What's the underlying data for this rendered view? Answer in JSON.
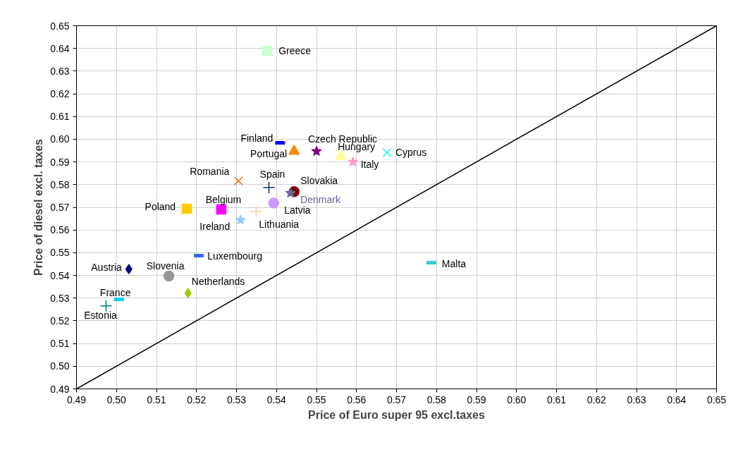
{
  "chart_data": {
    "type": "scatter",
    "xlabel": "Price of Euro super 95 excl.taxes",
    "ylabel": "Price of diesel excl. taxes",
    "xlim": [
      0.49,
      0.65
    ],
    "ylim": [
      0.49,
      0.65
    ],
    "xticks": [
      0.49,
      {
        "value": 0.5,
        "label": "0.50"
      },
      0.51,
      0.52,
      0.53,
      0.54,
      0.55,
      0.56,
      0.57,
      0.58,
      0.59,
      {
        "value": 0.6,
        "label": "0.60"
      },
      0.61,
      0.62,
      0.63,
      0.64,
      0.65
    ],
    "yticks": [
      0.49,
      {
        "value": 0.5,
        "label": "0.50"
      },
      0.51,
      0.52,
      0.53,
      0.54,
      0.55,
      0.56,
      0.57,
      0.58,
      0.59,
      {
        "value": 0.6,
        "label": "0.60"
      },
      0.61,
      0.62,
      0.63,
      0.64,
      0.65
    ],
    "grid": true,
    "series": [
      {
        "type": "line",
        "color": "#000000",
        "x": [
          0.49,
          0.65
        ],
        "values": [
          0.49,
          0.65
        ]
      },
      {
        "name": "Greece",
        "color": "#ccffcc",
        "marker": "square",
        "x": [
          0.5377
        ],
        "values": [
          0.639
        ]
      },
      {
        "name": "Finland",
        "color": "#0000ff",
        "x": [
          0.5409
        ],
        "values": [
          0.5984
        ]
      },
      {
        "name": "Czech Republic",
        "color": "#800080",
        "marker": "star",
        "x": [
          0.55
        ],
        "values": [
          0.5947
        ]
      },
      {
        "name": "Portugal",
        "color": "#ff8c00",
        "marker": "triangle",
        "x": [
          0.5444
        ],
        "values": [
          0.5947
        ]
      },
      {
        "name": "Hungary",
        "color": "#ffff99",
        "marker": "triangle",
        "x": [
          0.5561
        ],
        "values": [
          0.5925
        ]
      },
      {
        "name": "Italy",
        "color": "#ff99cc",
        "marker": "star",
        "x": [
          0.5591
        ],
        "values": [
          0.59
        ]
      },
      {
        "name": "Cyprus",
        "color": "#00ffff",
        "marker": "x",
        "x": [
          0.5676
        ],
        "values": [
          0.5941
        ]
      },
      {
        "name": "Romania",
        "color": "#ff6600",
        "marker": "x",
        "x": [
          0.5305
        ],
        "values": [
          0.5816
        ]
      },
      {
        "name": "Spain",
        "color": "#003366",
        "marker": "cross",
        "x": [
          0.5381
        ],
        "values": [
          0.5787
        ]
      },
      {
        "name": "Slovakia",
        "color": "#800000",
        "marker": "circle",
        "x": [
          0.5444
        ],
        "values": [
          0.5769
        ]
      },
      {
        "name": "Denmark",
        "color": "#666699",
        "marker": "star",
        "x": [
          0.5435
        ],
        "values": [
          0.5763
        ]
      },
      {
        "name": "Latvia",
        "color": "#cc99ff",
        "marker": "circle",
        "x": [
          0.5393
        ],
        "values": [
          0.5719
        ]
      },
      {
        "name": "Poland",
        "color": "#ffcc00",
        "marker": "square",
        "x": [
          0.5176
        ],
        "values": [
          0.5694
        ]
      },
      {
        "name": "Belgium",
        "color": "#ff00ff",
        "marker": "square",
        "x": [
          0.5262
        ],
        "values": [
          0.5691
        ]
      },
      {
        "name": "Lithuania",
        "color": "#ffcc99",
        "marker": "cross",
        "x": [
          0.5349
        ],
        "values": [
          0.5681
        ]
      },
      {
        "name": "Ireland",
        "color": "#99ccff",
        "marker": "star",
        "x": [
          0.531
        ],
        "values": [
          0.5644
        ]
      },
      {
        "name": "Luxembourg",
        "color": "#3366ff",
        "x": [
          0.5206
        ],
        "values": [
          0.5487
        ]
      },
      {
        "name": "Malta",
        "color": "#33cccc",
        "x": [
          0.5787
        ],
        "values": [
          0.5456
        ]
      },
      {
        "name": "Austria",
        "color": "#000080",
        "marker": "diamond",
        "x": [
          0.5031
        ],
        "values": [
          0.5428
        ]
      },
      {
        "name": "Slovenia",
        "color": "#969696",
        "marker": "circle",
        "x": [
          0.5131
        ],
        "values": [
          0.5397
        ]
      },
      {
        "name": "Netherlands",
        "color": "#99cc00",
        "marker": "diamond",
        "x": [
          0.5179
        ],
        "values": [
          0.5322
        ]
      },
      {
        "name": "France",
        "color": "#00ccff",
        "x": [
          0.5006
        ],
        "values": [
          0.5294
        ]
      },
      {
        "name": "Estonia",
        "color": "#008080",
        "marker": "cross",
        "x": [
          0.4974
        ],
        "values": [
          0.5266
        ]
      }
    ]
  }
}
